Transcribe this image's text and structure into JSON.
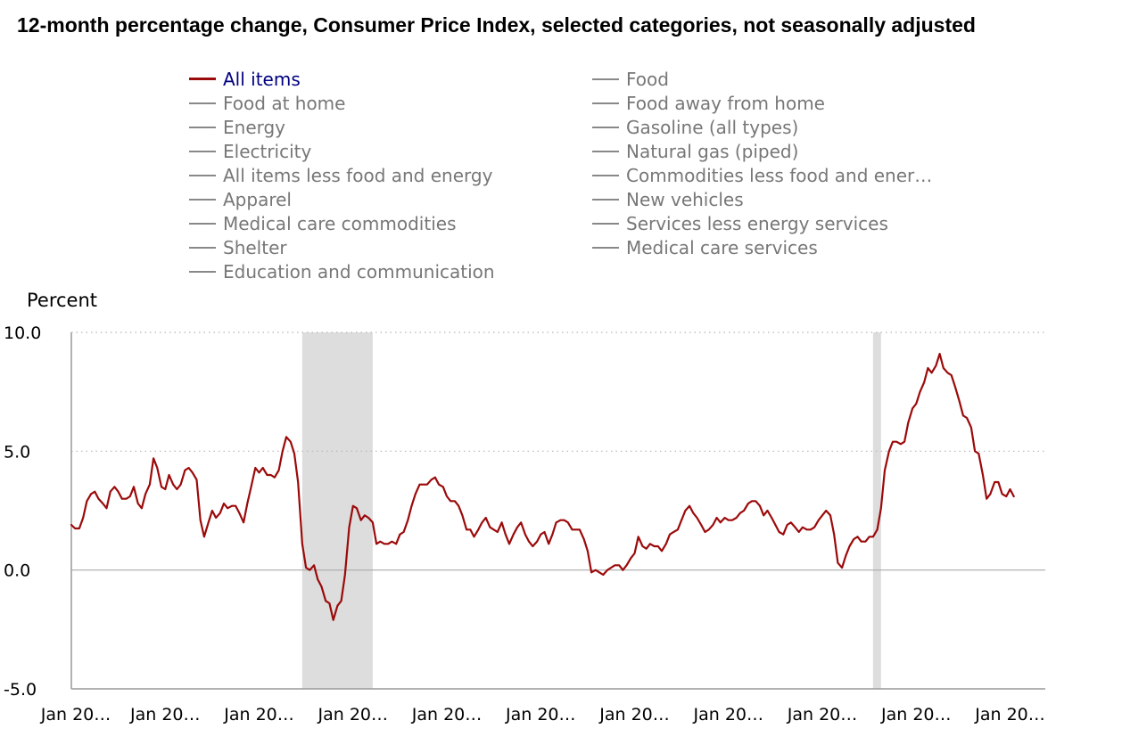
{
  "chart_data": {
    "type": "line",
    "title": "12-month percentage change, Consumer Price Index, selected categories, not seasonally adjusted",
    "ylabel": "Percent",
    "xlabel": "",
    "ylim": [
      -5.0,
      10.0
    ],
    "yticks": [
      "10.0",
      "5.0",
      "0.0",
      "-5.0"
    ],
    "ytick_values": [
      10,
      5,
      0,
      -5
    ],
    "grid": "horizontal dotted",
    "xlim": [
      2003.0,
      2023.75
    ],
    "xtick_labels": [
      "Jan 20…",
      "Jan 20…",
      "Jan 20…",
      "Jan 20…",
      "Jan 20…",
      "Jan 20…",
      "Jan 20…",
      "Jan 20…",
      "Jan 20…",
      "Jan 20…",
      "Jan 20…"
    ],
    "xtick_values": [
      2003,
      2005,
      2007,
      2009,
      2011,
      2013,
      2015,
      2017,
      2019,
      2021,
      2023
    ],
    "legend": [
      {
        "label": "All items",
        "active": true
      },
      {
        "label": "Food",
        "active": false
      },
      {
        "label": "Food at home",
        "active": false
      },
      {
        "label": "Food away from home",
        "active": false
      },
      {
        "label": "Energy",
        "active": false
      },
      {
        "label": "Gasoline (all types)",
        "active": false
      },
      {
        "label": "Electricity",
        "active": false
      },
      {
        "label": "Natural gas (piped)",
        "active": false
      },
      {
        "label": "All items less food and energy",
        "active": false
      },
      {
        "label": "Commodities less food and ener…",
        "active": false
      },
      {
        "label": "Apparel",
        "active": false
      },
      {
        "label": "New vehicles",
        "active": false
      },
      {
        "label": "Medical care commodities",
        "active": false
      },
      {
        "label": "Services less energy services",
        "active": false
      },
      {
        "label": "Shelter",
        "active": false
      },
      {
        "label": "Medical care services",
        "active": false
      },
      {
        "label": "Education and communication",
        "active": false
      }
    ],
    "recessions": [
      {
        "start": 2007.92,
        "end": 2009.42
      },
      {
        "start": 2020.08,
        "end": 2020.25
      }
    ],
    "series": [
      {
        "name": "All items",
        "color": "#9b0a0a",
        "points": [
          [
            2003.0,
            1.9
          ],
          [
            2003.08,
            1.75
          ],
          [
            2003.17,
            1.75
          ],
          [
            2003.25,
            2.2
          ],
          [
            2003.33,
            2.9
          ],
          [
            2003.42,
            3.2
          ],
          [
            2003.5,
            3.3
          ],
          [
            2003.58,
            3.0
          ],
          [
            2003.67,
            2.8
          ],
          [
            2003.75,
            2.6
          ],
          [
            2003.83,
            3.3
          ],
          [
            2003.92,
            3.5
          ],
          [
            2004.0,
            3.3
          ],
          [
            2004.08,
            3.0
          ],
          [
            2004.17,
            3.0
          ],
          [
            2004.25,
            3.1
          ],
          [
            2004.33,
            3.5
          ],
          [
            2004.42,
            2.8
          ],
          [
            2004.5,
            2.6
          ],
          [
            2004.58,
            3.2
          ],
          [
            2004.67,
            3.6
          ],
          [
            2004.75,
            4.7
          ],
          [
            2004.83,
            4.3
          ],
          [
            2004.92,
            3.5
          ],
          [
            2005.0,
            3.4
          ],
          [
            2005.08,
            4.0
          ],
          [
            2005.17,
            3.6
          ],
          [
            2005.25,
            3.4
          ],
          [
            2005.33,
            3.6
          ],
          [
            2005.42,
            4.2
          ],
          [
            2005.5,
            4.3
          ],
          [
            2005.58,
            4.1
          ],
          [
            2005.67,
            3.8
          ],
          [
            2005.75,
            2.1
          ],
          [
            2005.83,
            1.4
          ],
          [
            2005.92,
            2.0
          ],
          [
            2006.0,
            2.5
          ],
          [
            2006.08,
            2.2
          ],
          [
            2006.17,
            2.4
          ],
          [
            2006.25,
            2.8
          ],
          [
            2006.33,
            2.6
          ],
          [
            2006.42,
            2.7
          ],
          [
            2006.5,
            2.7
          ],
          [
            2006.58,
            2.4
          ],
          [
            2006.67,
            2.0
          ],
          [
            2006.75,
            2.8
          ],
          [
            2006.83,
            3.5
          ],
          [
            2006.92,
            4.3
          ],
          [
            2007.0,
            4.1
          ],
          [
            2007.08,
            4.3
          ],
          [
            2007.17,
            4.0
          ],
          [
            2007.25,
            4.0
          ],
          [
            2007.33,
            3.9
          ],
          [
            2007.42,
            4.2
          ],
          [
            2007.5,
            5.0
          ],
          [
            2007.58,
            5.6
          ],
          [
            2007.67,
            5.4
          ],
          [
            2007.75,
            4.9
          ],
          [
            2007.83,
            3.7
          ],
          [
            2007.92,
            1.1
          ],
          [
            2008.0,
            0.1
          ],
          [
            2008.08,
            0.0
          ],
          [
            2008.17,
            0.2
          ],
          [
            2008.25,
            -0.4
          ],
          [
            2008.33,
            -0.7
          ],
          [
            2008.42,
            -1.3
          ],
          [
            2008.5,
            -1.4
          ],
          [
            2008.58,
            -2.1
          ],
          [
            2008.67,
            -1.5
          ],
          [
            2008.75,
            -1.3
          ],
          [
            2008.83,
            -0.2
          ],
          [
            2008.92,
            1.8
          ],
          [
            2009.0,
            2.7
          ],
          [
            2009.08,
            2.6
          ],
          [
            2009.17,
            2.1
          ],
          [
            2009.25,
            2.3
          ],
          [
            2009.33,
            2.2
          ],
          [
            2009.42,
            2.0
          ],
          [
            2009.5,
            1.1
          ],
          [
            2009.58,
            1.2
          ],
          [
            2009.67,
            1.1
          ],
          [
            2009.75,
            1.1
          ],
          [
            2009.83,
            1.2
          ],
          [
            2009.92,
            1.1
          ],
          [
            2010.0,
            1.5
          ],
          [
            2010.08,
            1.6
          ],
          [
            2010.17,
            2.1
          ],
          [
            2010.25,
            2.7
          ],
          [
            2010.33,
            3.2
          ],
          [
            2010.42,
            3.6
          ],
          [
            2010.5,
            3.6
          ],
          [
            2010.58,
            3.6
          ],
          [
            2010.67,
            3.8
          ],
          [
            2010.75,
            3.9
          ],
          [
            2010.83,
            3.6
          ],
          [
            2010.92,
            3.5
          ],
          [
            2011.0,
            3.1
          ],
          [
            2011.08,
            2.9
          ],
          [
            2011.17,
            2.9
          ],
          [
            2011.25,
            2.7
          ],
          [
            2011.33,
            2.3
          ],
          [
            2011.42,
            1.7
          ],
          [
            2011.5,
            1.7
          ],
          [
            2011.58,
            1.4
          ],
          [
            2011.67,
            1.7
          ],
          [
            2011.75,
            2.0
          ],
          [
            2011.83,
            2.2
          ],
          [
            2011.92,
            1.8
          ],
          [
            2012.0,
            1.7
          ],
          [
            2012.08,
            1.6
          ],
          [
            2012.17,
            2.0
          ],
          [
            2012.25,
            1.5
          ],
          [
            2012.33,
            1.1
          ],
          [
            2012.42,
            1.5
          ],
          [
            2012.5,
            1.8
          ],
          [
            2012.58,
            2.0
          ],
          [
            2012.67,
            1.5
          ],
          [
            2012.75,
            1.2
          ],
          [
            2012.83,
            1.0
          ],
          [
            2012.92,
            1.2
          ],
          [
            2013.0,
            1.5
          ],
          [
            2013.08,
            1.6
          ],
          [
            2013.17,
            1.1
          ],
          [
            2013.25,
            1.5
          ],
          [
            2013.33,
            2.0
          ],
          [
            2013.42,
            2.1
          ],
          [
            2013.5,
            2.1
          ],
          [
            2013.58,
            2.0
          ],
          [
            2013.67,
            1.7
          ],
          [
            2013.75,
            1.7
          ],
          [
            2013.83,
            1.7
          ],
          [
            2013.92,
            1.3
          ],
          [
            2014.0,
            0.8
          ],
          [
            2014.08,
            -0.1
          ],
          [
            2014.17,
            0.0
          ],
          [
            2014.25,
            -0.1
          ],
          [
            2014.33,
            -0.2
          ],
          [
            2014.42,
            0.0
          ],
          [
            2014.5,
            0.1
          ],
          [
            2014.58,
            0.2
          ],
          [
            2014.67,
            0.2
          ],
          [
            2014.75,
            0.0
          ],
          [
            2014.83,
            0.2
          ],
          [
            2014.92,
            0.5
          ],
          [
            2015.0,
            0.7
          ],
          [
            2015.08,
            1.4
          ],
          [
            2015.17,
            1.0
          ],
          [
            2015.25,
            0.9
          ],
          [
            2015.33,
            1.1
          ],
          [
            2015.42,
            1.0
          ],
          [
            2015.5,
            1.0
          ],
          [
            2015.58,
            0.8
          ],
          [
            2015.67,
            1.1
          ],
          [
            2015.75,
            1.5
          ],
          [
            2015.83,
            1.6
          ],
          [
            2015.92,
            1.7
          ],
          [
            2016.0,
            2.1
          ],
          [
            2016.08,
            2.5
          ],
          [
            2016.17,
            2.7
          ],
          [
            2016.25,
            2.4
          ],
          [
            2016.33,
            2.2
          ],
          [
            2016.42,
            1.9
          ],
          [
            2016.5,
            1.6
          ],
          [
            2016.58,
            1.7
          ],
          [
            2016.67,
            1.9
          ],
          [
            2016.75,
            2.2
          ],
          [
            2016.83,
            2.0
          ],
          [
            2016.92,
            2.2
          ],
          [
            2017.0,
            2.1
          ],
          [
            2017.08,
            2.1
          ],
          [
            2017.17,
            2.2
          ],
          [
            2017.25,
            2.4
          ],
          [
            2017.33,
            2.5
          ],
          [
            2017.42,
            2.8
          ],
          [
            2017.5,
            2.9
          ],
          [
            2017.58,
            2.9
          ],
          [
            2017.67,
            2.7
          ],
          [
            2017.75,
            2.3
          ],
          [
            2017.83,
            2.5
          ],
          [
            2017.92,
            2.2
          ],
          [
            2018.0,
            1.9
          ],
          [
            2018.08,
            1.6
          ],
          [
            2018.17,
            1.5
          ],
          [
            2018.25,
            1.9
          ],
          [
            2018.33,
            2.0
          ],
          [
            2018.42,
            1.8
          ],
          [
            2018.5,
            1.6
          ],
          [
            2018.58,
            1.8
          ],
          [
            2018.67,
            1.7
          ],
          [
            2018.75,
            1.7
          ],
          [
            2018.83,
            1.8
          ],
          [
            2018.92,
            2.1
          ],
          [
            2019.0,
            2.3
          ],
          [
            2019.08,
            2.5
          ],
          [
            2019.17,
            2.3
          ],
          [
            2019.25,
            1.5
          ],
          [
            2019.33,
            0.3
          ],
          [
            2019.42,
            0.1
          ],
          [
            2019.5,
            0.6
          ],
          [
            2019.58,
            1.0
          ],
          [
            2019.67,
            1.3
          ],
          [
            2019.75,
            1.4
          ],
          [
            2019.83,
            1.2
          ],
          [
            2019.92,
            1.2
          ],
          [
            2020.0,
            1.4
          ],
          [
            2020.08,
            1.4
          ],
          [
            2020.17,
            1.7
          ],
          [
            2020.25,
            2.6
          ],
          [
            2020.33,
            4.2
          ],
          [
            2020.42,
            5.0
          ],
          [
            2020.5,
            5.4
          ],
          [
            2020.58,
            5.4
          ],
          [
            2020.67,
            5.3
          ],
          [
            2020.75,
            5.4
          ],
          [
            2020.83,
            6.2
          ],
          [
            2020.92,
            6.8
          ],
          [
            2021.0,
            7.0
          ],
          [
            2021.08,
            7.5
          ],
          [
            2021.17,
            7.9
          ],
          [
            2021.25,
            8.5
          ],
          [
            2021.33,
            8.3
          ],
          [
            2021.42,
            8.6
          ],
          [
            2021.5,
            9.1
          ],
          [
            2021.58,
            8.5
          ],
          [
            2021.67,
            8.3
          ],
          [
            2021.75,
            8.2
          ],
          [
            2021.83,
            7.7
          ],
          [
            2021.92,
            7.1
          ],
          [
            2022.0,
            6.5
          ],
          [
            2022.08,
            6.4
          ],
          [
            2022.17,
            6.0
          ],
          [
            2022.25,
            5.0
          ],
          [
            2022.33,
            4.9
          ],
          [
            2022.42,
            4.0
          ],
          [
            2022.5,
            3.0
          ],
          [
            2022.58,
            3.2
          ],
          [
            2022.67,
            3.7
          ],
          [
            2022.75,
            3.7
          ],
          [
            2022.83,
            3.2
          ],
          [
            2022.92,
            3.1
          ],
          [
            2023.0,
            3.4
          ],
          [
            2023.08,
            3.1
          ]
        ]
      }
    ]
  }
}
